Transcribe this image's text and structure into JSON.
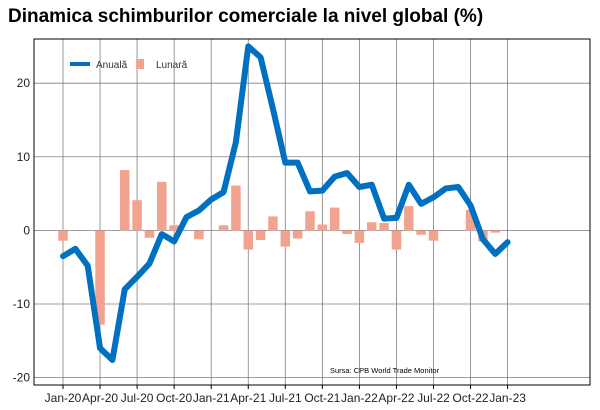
{
  "chart_data": {
    "type": "bar+line",
    "title": "Dinamica schimburilor comerciale la nivel global (%)",
    "xlabel": "",
    "ylabel": "",
    "ylim": [
      -21,
      26
    ],
    "yticks": [
      -20,
      -10,
      0,
      10,
      20
    ],
    "grid": true,
    "legend_position": "top-left",
    "source": "Sursa: CPB World Trade Monitor",
    "x_tick_labels": [
      "Jan-20",
      "Apr-20",
      "Jul-20",
      "Oct-20",
      "Jan-21",
      "Apr-21",
      "Jul-21",
      "Oct-21",
      "Jan-22",
      "Apr-22",
      "Jul-22",
      "Oct-22",
      "Jan-23"
    ],
    "months": [
      "Jan-20",
      "Feb-20",
      "Mar-20",
      "Apr-20",
      "May-20",
      "Jun-20",
      "Jul-20",
      "Aug-20",
      "Sep-20",
      "Oct-20",
      "Nov-20",
      "Dec-20",
      "Jan-21",
      "Feb-21",
      "Mar-21",
      "Apr-21",
      "May-21",
      "Jun-21",
      "Jul-21",
      "Aug-21",
      "Sep-21",
      "Oct-21",
      "Nov-21",
      "Dec-21",
      "Jan-22",
      "Feb-22",
      "Mar-22",
      "Apr-22",
      "May-22",
      "Jun-22",
      "Jul-22",
      "Aug-22",
      "Sep-22",
      "Oct-22",
      "Nov-22",
      "Dec-22",
      "Jan-23"
    ],
    "series": [
      {
        "name": "Anuală",
        "kind": "line",
        "color": "#0070c0",
        "values": [
          -3.5,
          -2.5,
          -4.8,
          -16,
          -17.6,
          -8,
          -6.3,
          -4.5,
          -0.5,
          -1.5,
          1.8,
          2.7,
          4.2,
          5.2,
          12,
          25,
          23.5,
          16.5,
          9.2,
          9.2,
          5.3,
          5.4,
          7.3,
          7.8,
          5.9,
          6.2,
          1.6,
          1.7,
          6.2,
          3.6,
          4.5,
          5.7,
          5.9,
          3.4,
          -1.2,
          -3.2,
          -1.6
        ]
      },
      {
        "name": "Lunară",
        "kind": "bar",
        "color": "#f2a38f",
        "values": [
          -1.4,
          0,
          0,
          -12.8,
          0,
          8.2,
          4.1,
          -1.0,
          6.6,
          0.7,
          0,
          -1.2,
          0,
          0.7,
          6.1,
          -2.6,
          -1.3,
          1.9,
          -2.2,
          -1.1,
          2.6,
          0.8,
          3.1,
          -0.5,
          -1.7,
          1.1,
          1.0,
          -2.6,
          3.3,
          -0.6,
          -1.4,
          0,
          0,
          2.8,
          -1.5,
          -0.3,
          0
        ]
      }
    ]
  },
  "colors": {
    "line": "#0070c0",
    "bar": "#f2a38f",
    "grid": "#7f7f7f",
    "axis": "#000000"
  }
}
